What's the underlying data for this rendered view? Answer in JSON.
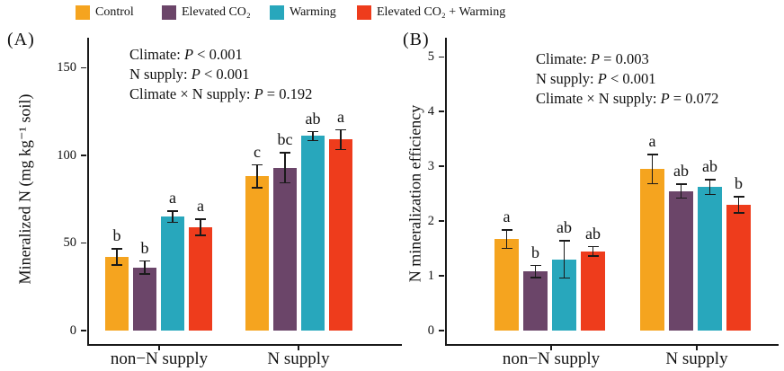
{
  "legend": {
    "items": [
      {
        "label": "Control",
        "color": "#F5A41F"
      },
      {
        "label": "Elevated CO₂",
        "color": "#6B4569"
      },
      {
        "label": "Warming",
        "color": "#28A7BC"
      },
      {
        "label": "Elevated CO₂ + Warming",
        "color": "#EE3C1C"
      }
    ]
  },
  "chart_data": [
    {
      "type": "bar",
      "panel_label": "(A)",
      "ylabel": "Mineralized N (mg kg⁻¹ soil)",
      "ylim": [
        0,
        164
      ],
      "yticks": [
        0,
        50,
        100,
        150
      ],
      "grid": false,
      "legend_position": "top",
      "categories": [
        "non−N supply",
        "N supply"
      ],
      "stats": [
        [
          "Climate: ",
          "P",
          " < 0.001"
        ],
        [
          "N supply: ",
          "P",
          " < 0.001"
        ],
        [
          "Climate × N supply: ",
          "P",
          " = 0.192"
        ]
      ],
      "series": [
        {
          "name": "Control",
          "values": [
            42,
            88
          ],
          "errors": [
            5,
            7
          ],
          "letters": [
            "b",
            "c"
          ]
        },
        {
          "name": "Elevated CO₂",
          "values": [
            36,
            93
          ],
          "errors": [
            4,
            9
          ],
          "letters": [
            "b",
            "bc"
          ]
        },
        {
          "name": "Warming",
          "values": [
            65,
            111
          ],
          "errors": [
            3.5,
            3
          ],
          "letters": [
            "a",
            "ab"
          ]
        },
        {
          "name": "Elevated CO₂ + Warming",
          "values": [
            59,
            109
          ],
          "errors": [
            5,
            6
          ],
          "letters": [
            "a",
            "a"
          ]
        }
      ]
    },
    {
      "type": "bar",
      "panel_label": "(B)",
      "ylabel": "N mineralization efficiency",
      "ylim": [
        0,
        5.25
      ],
      "yticks": [
        0,
        1,
        2,
        3,
        4,
        5
      ],
      "grid": false,
      "legend_position": "top",
      "categories": [
        "non−N supply",
        "N supply"
      ],
      "stats": [
        [
          "Climate: ",
          "P",
          " = 0.003"
        ],
        [
          "N supply: ",
          "P",
          " < 0.001"
        ],
        [
          "Climate × N supply: ",
          "P",
          " = 0.072"
        ]
      ],
      "series": [
        {
          "name": "Control",
          "values": [
            1.67,
            2.95
          ],
          "errors": [
            0.18,
            0.28
          ],
          "letters": [
            "a",
            "a"
          ]
        },
        {
          "name": "Elevated CO₂",
          "values": [
            1.08,
            2.55
          ],
          "errors": [
            0.12,
            0.14
          ],
          "letters": [
            "b",
            "ab"
          ]
        },
        {
          "name": "Warming",
          "values": [
            1.3,
            2.62
          ],
          "errors": [
            0.35,
            0.15
          ],
          "letters": [
            "ab",
            "ab"
          ]
        },
        {
          "name": "Elevated CO₂ + Warming",
          "values": [
            1.45,
            2.3
          ],
          "errors": [
            0.1,
            0.16
          ],
          "letters": [
            "ab",
            "b"
          ]
        }
      ]
    }
  ]
}
